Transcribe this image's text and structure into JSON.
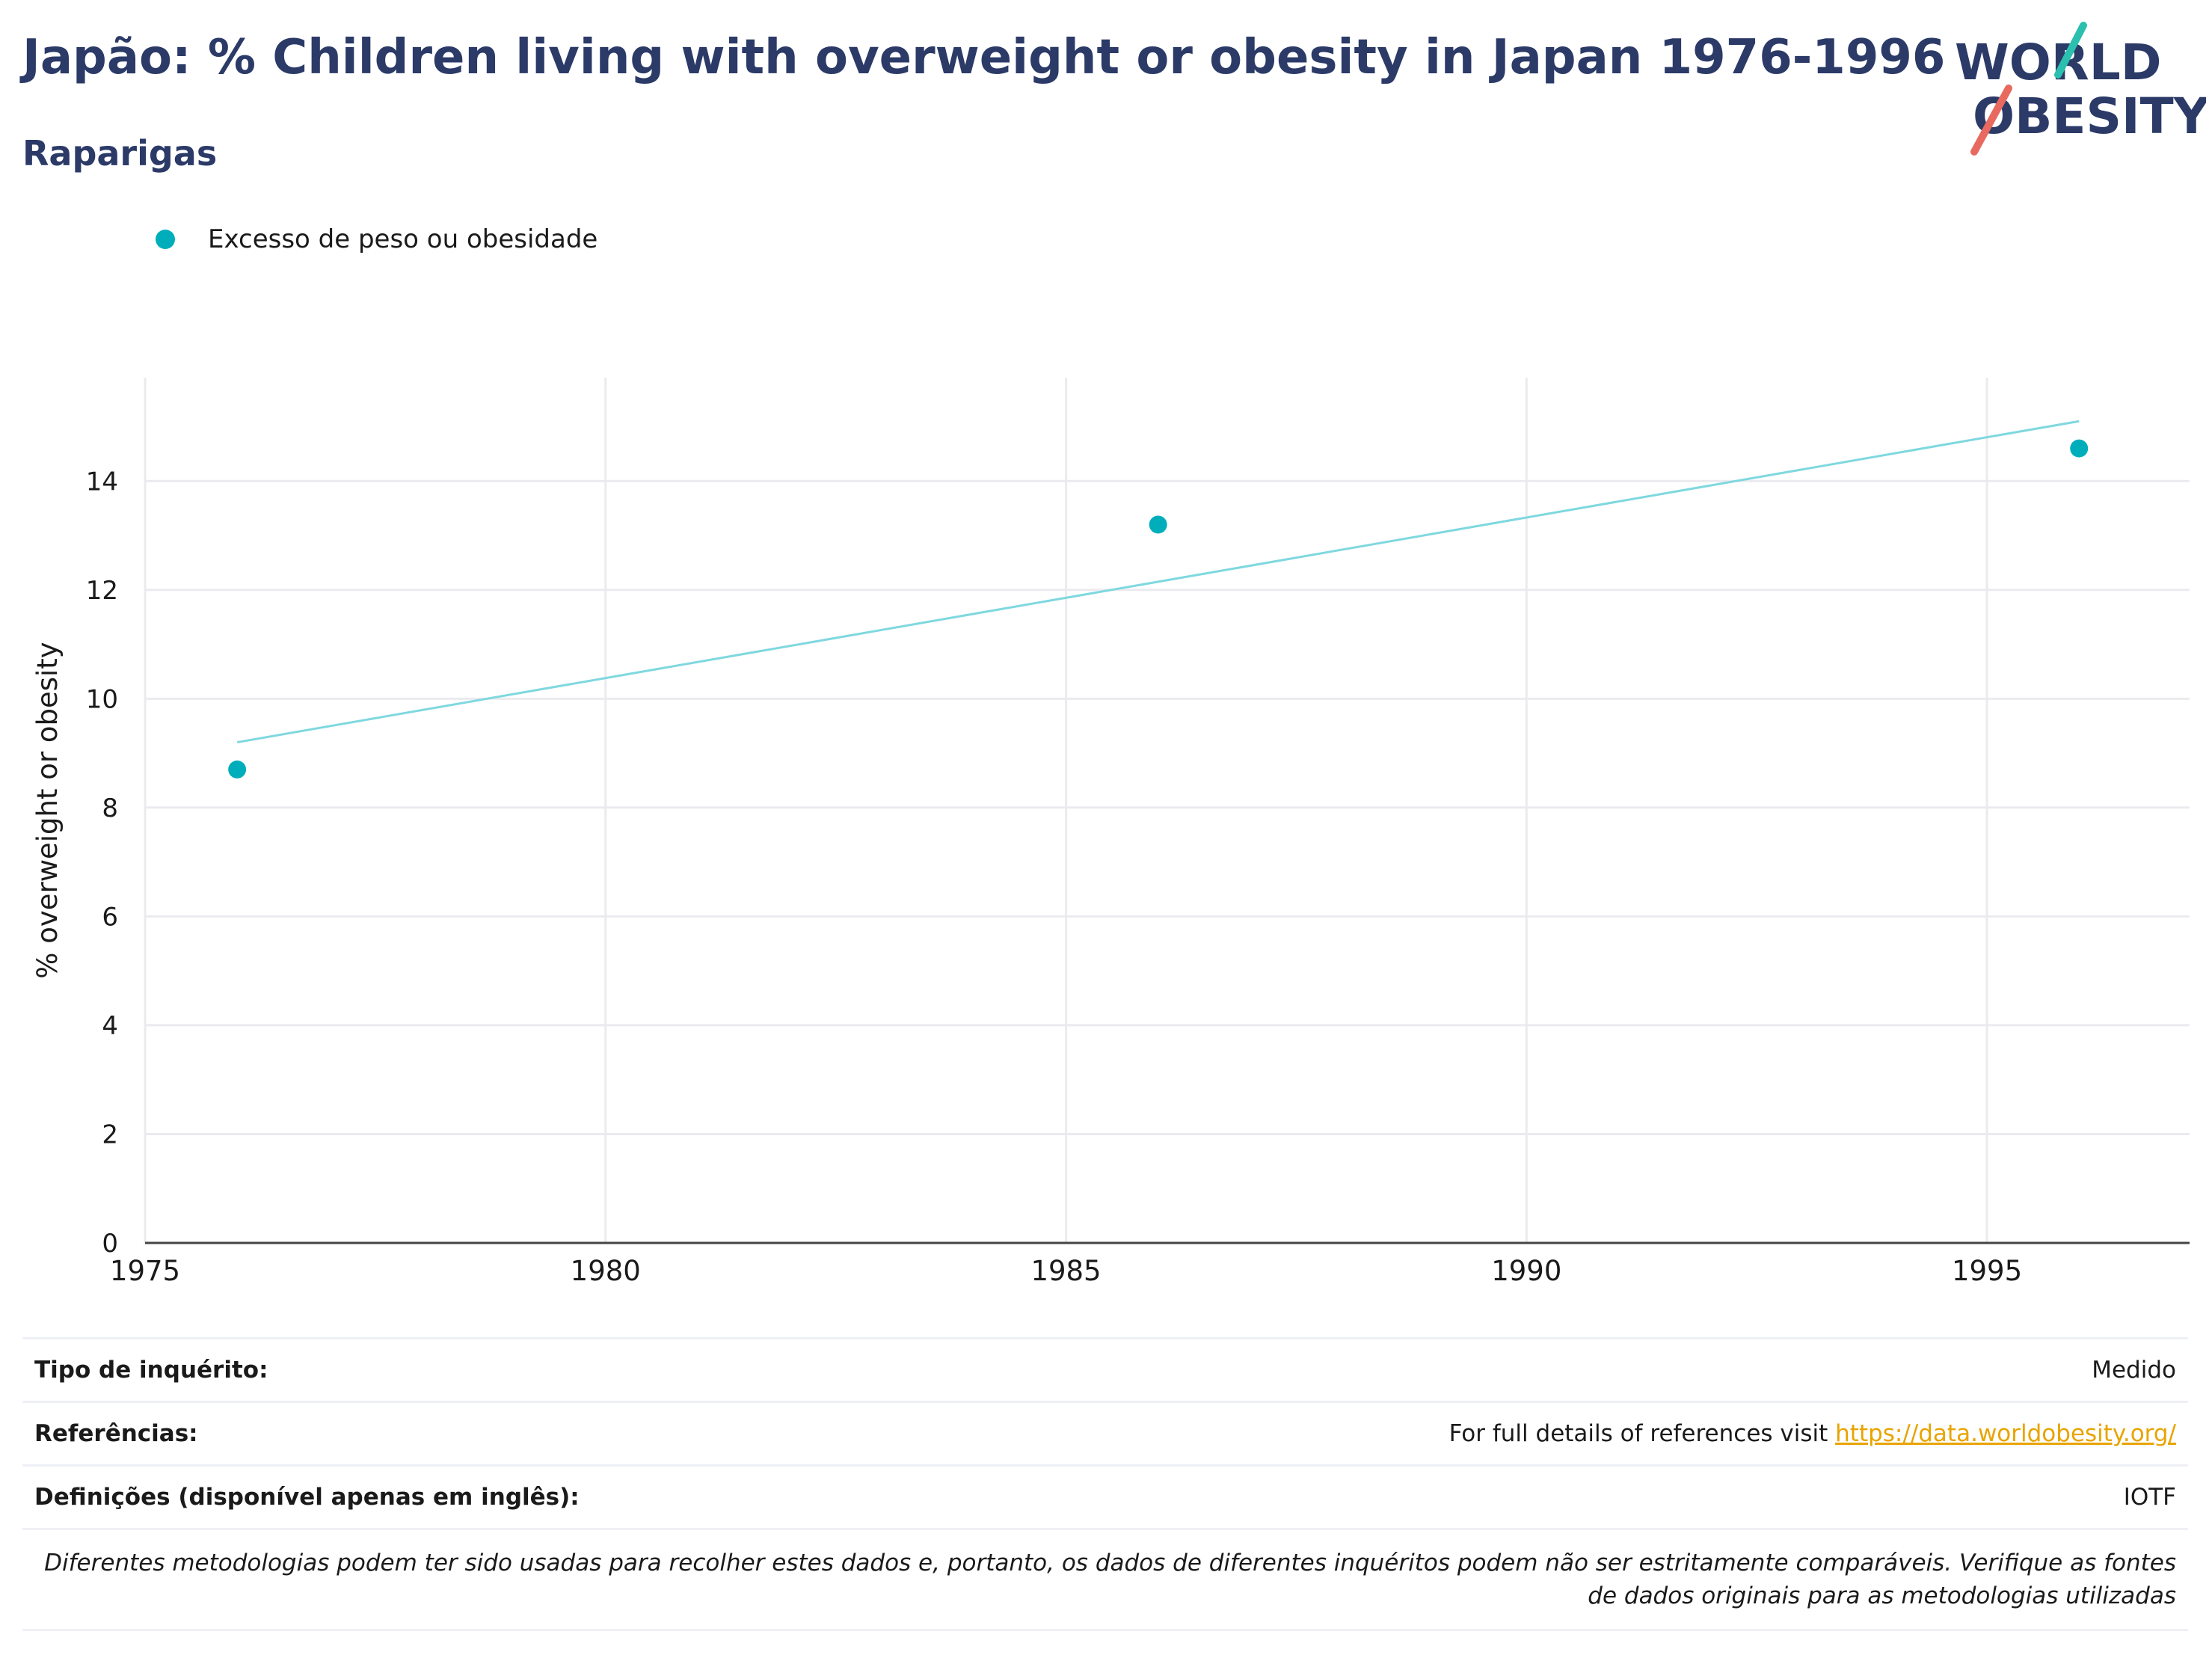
{
  "header": {
    "title": "Japão: % Children living with overweight or obesity in Japan 1976-1996",
    "subtitle": "Raparigas"
  },
  "logo": {
    "line1": "WORLD",
    "line2": "OBESITY",
    "accent_teal": "#2bbfb0",
    "accent_red": "#e8695f",
    "text_color": "#2b3a67"
  },
  "legend": {
    "label": "Excesso de peso ou obesidade",
    "color": "#00aebb"
  },
  "chart_data": {
    "type": "scatter",
    "ylabel": "% overweight or obesity",
    "xlabel": "",
    "xlim": [
      1975,
      1997.2
    ],
    "ylim": [
      0,
      15.9
    ],
    "x_ticks": [
      1975,
      1980,
      1985,
      1990,
      1995
    ],
    "y_ticks": [
      0,
      2,
      4,
      6,
      8,
      10,
      12,
      14
    ],
    "grid": true,
    "series": [
      {
        "name": "Excesso de peso ou obesidade",
        "x": [
          1976,
          1986,
          1996
        ],
        "y": [
          8.7,
          13.2,
          14.6
        ],
        "color": "#00aebb"
      }
    ],
    "trendline": {
      "x": [
        1976,
        1996
      ],
      "y": [
        9.2,
        15.1
      ],
      "color": "#7fd8df"
    }
  },
  "meta": {
    "survey_type_label": "Tipo de inquérito:",
    "survey_type_value": "Medido",
    "references_label": "Referências:",
    "references_text": "For full details of references visit ",
    "references_link": "https://data.worldobesity.org/",
    "definitions_label": "Definições (disponível apenas em inglês):",
    "definitions_value": "IOTF",
    "note": "Diferentes metodologias podem ter sido usadas para recolher estes dados e, portanto, os dados de diferentes inquéritos podem não ser estritamente comparáveis. Verifique as fontes de dados originais para as metodologias utilizadas"
  }
}
